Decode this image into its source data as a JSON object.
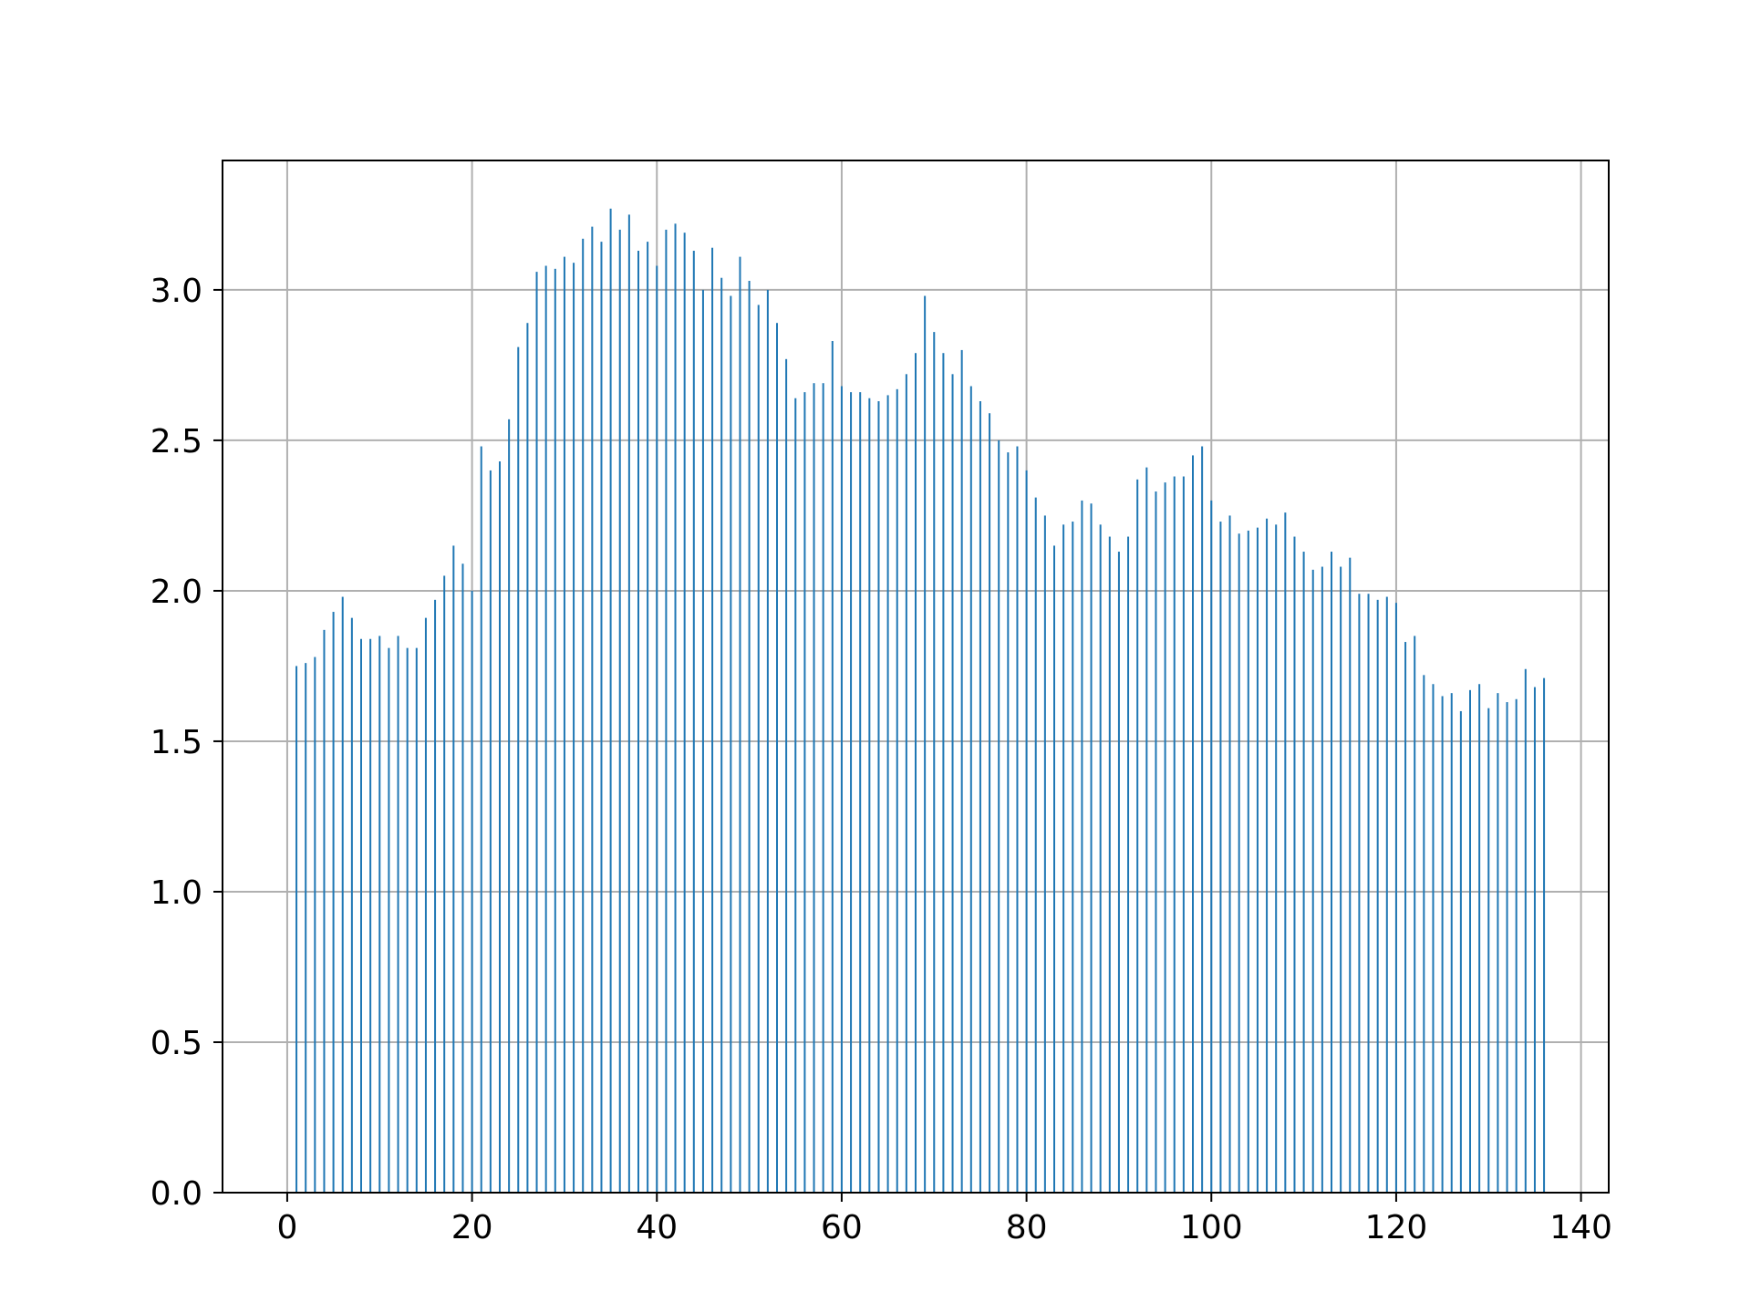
{
  "chart_data": {
    "type": "bar",
    "title": "",
    "xlabel": "",
    "ylabel": "",
    "xlim": [
      -7,
      143
    ],
    "ylim": [
      0,
      3.43
    ],
    "grid": true,
    "colors": {
      "bar": "#1f77b4",
      "grid": "#b0b0b0",
      "axes": "#000000"
    },
    "x_ticks": [
      0,
      20,
      40,
      60,
      80,
      100,
      120,
      140
    ],
    "x_tick_labels": [
      "0",
      "20",
      "40",
      "60",
      "80",
      "100",
      "120",
      "140"
    ],
    "y_ticks": [
      0.0,
      0.5,
      1.0,
      1.5,
      2.0,
      2.5,
      3.0
    ],
    "y_tick_labels": [
      "0.0",
      "0.5",
      "1.0",
      "1.5",
      "2.0",
      "2.5",
      "3.0"
    ],
    "x": [
      1,
      2,
      3,
      4,
      5,
      6,
      7,
      8,
      9,
      10,
      11,
      12,
      13,
      14,
      15,
      16,
      17,
      18,
      19,
      20,
      21,
      22,
      23,
      24,
      25,
      26,
      27,
      28,
      29,
      30,
      31,
      32,
      33,
      34,
      35,
      36,
      37,
      38,
      39,
      40,
      41,
      42,
      43,
      44,
      45,
      46,
      47,
      48,
      49,
      50,
      51,
      52,
      53,
      54,
      55,
      56,
      57,
      58,
      59,
      60,
      61,
      62,
      63,
      64,
      65,
      66,
      67,
      68,
      69,
      70,
      71,
      72,
      73,
      74,
      75,
      76,
      77,
      78,
      79,
      80,
      81,
      82,
      83,
      84,
      85,
      86,
      87,
      88,
      89,
      90,
      91,
      92,
      93,
      94,
      95,
      96,
      97,
      98,
      99,
      100,
      101,
      102,
      103,
      104,
      105,
      106,
      107,
      108,
      109,
      110,
      111,
      112,
      113,
      114,
      115,
      116,
      117,
      118,
      119,
      120,
      121,
      122,
      123,
      124,
      125,
      126,
      127,
      128,
      129,
      130,
      131,
      132,
      133,
      134,
      135,
      136
    ],
    "values": [
      1.75,
      1.76,
      1.78,
      1.87,
      1.93,
      1.98,
      1.91,
      1.84,
      1.84,
      1.85,
      1.81,
      1.85,
      1.81,
      1.81,
      1.91,
      1.97,
      2.05,
      2.15,
      2.09,
      2.0,
      2.48,
      2.4,
      2.43,
      2.57,
      2.81,
      2.89,
      3.06,
      3.08,
      3.07,
      3.11,
      3.09,
      3.17,
      3.21,
      3.16,
      3.27,
      3.2,
      3.25,
      3.13,
      3.16,
      3.08,
      3.2,
      3.22,
      3.19,
      3.13,
      3.0,
      3.14,
      3.04,
      2.98,
      3.11,
      3.03,
      2.95,
      3.0,
      2.89,
      2.77,
      2.64,
      2.66,
      2.69,
      2.69,
      2.83,
      2.68,
      2.66,
      2.66,
      2.64,
      2.63,
      2.65,
      2.67,
      2.72,
      2.79,
      2.98,
      2.86,
      2.79,
      2.72,
      2.8,
      2.68,
      2.63,
      2.59,
      2.5,
      2.46,
      2.48,
      2.4,
      2.31,
      2.25,
      2.15,
      2.22,
      2.23,
      2.3,
      2.29,
      2.22,
      2.18,
      2.13,
      2.18,
      2.37,
      2.41,
      2.33,
      2.36,
      2.38,
      2.38,
      2.45,
      2.48,
      2.3,
      2.23,
      2.25,
      2.19,
      2.2,
      2.21,
      2.24,
      2.22,
      2.26,
      2.18,
      2.13,
      2.07,
      2.08,
      2.13,
      2.08,
      2.11,
      1.99,
      1.99,
      1.97,
      1.98,
      1.96,
      1.83,
      1.85,
      1.72,
      1.69,
      1.65,
      1.66,
      1.6,
      1.67,
      1.69,
      1.61,
      1.66,
      1.63,
      1.64,
      1.74,
      1.68,
      1.71
    ]
  }
}
